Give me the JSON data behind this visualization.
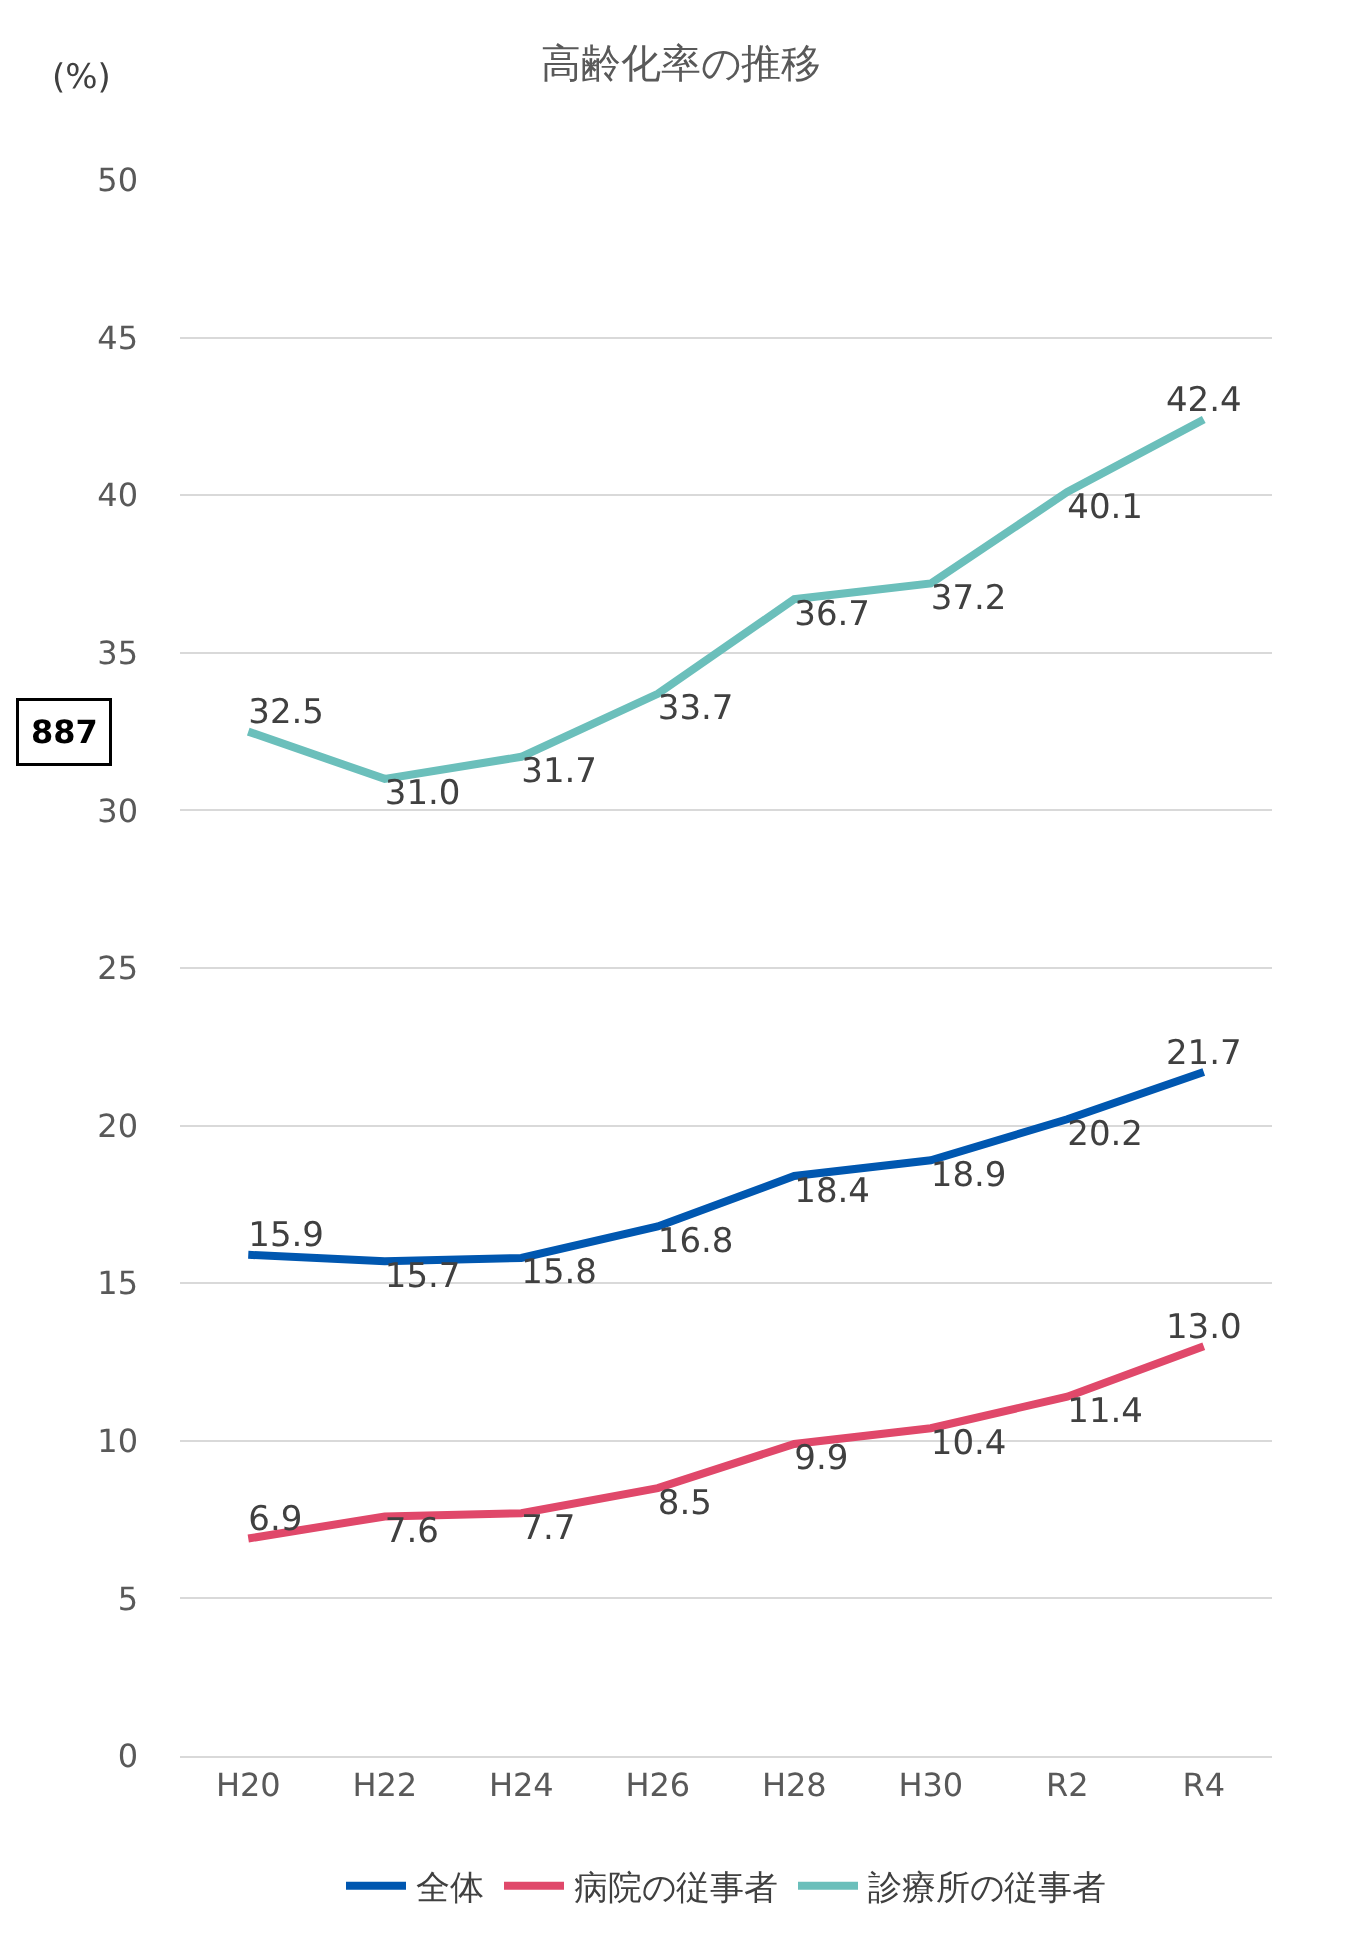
{
  "chart_data": {
    "type": "line",
    "title": "高齢化率の推移",
    "ylabel": "(%)",
    "categories": [
      "H20",
      "H22",
      "H24",
      "H26",
      "H28",
      "H30",
      "R2",
      "R4"
    ],
    "series": [
      {
        "name": "全体",
        "color": "#0057b0",
        "values": [
          15.9,
          15.7,
          15.8,
          16.8,
          18.4,
          18.9,
          20.2,
          21.7
        ],
        "value_labels": [
          "15.9",
          "15.7",
          "15.8",
          "16.8",
          "18.4",
          "18.9",
          "20.2",
          "21.7"
        ]
      },
      {
        "name": "病院の従事者",
        "color": "#e0486a",
        "values": [
          6.9,
          7.6,
          7.7,
          8.5,
          9.9,
          10.4,
          11.4,
          13.0
        ],
        "value_labels": [
          "6.9",
          "7.6",
          "7.7",
          "8.5",
          "9.9",
          "10.4",
          "11.4",
          "13.0"
        ]
      },
      {
        "name": "診療所の従事者",
        "color": "#6bbfbb",
        "values": [
          32.5,
          31.0,
          31.7,
          33.7,
          36.7,
          37.2,
          40.1,
          42.4
        ],
        "value_labels": [
          "32.5",
          "31.0",
          "31.7",
          "33.7",
          "36.7",
          "37.2",
          "40.1",
          "42.4"
        ]
      }
    ],
    "ylim": [
      0,
      50
    ],
    "yticks": [
      0,
      5,
      10,
      15,
      20,
      25,
      30,
      35,
      40,
      45,
      50
    ],
    "grid": "y",
    "legend": "bottom",
    "marker": "none",
    "line_style": "solid",
    "annotations": [
      "887"
    ]
  }
}
